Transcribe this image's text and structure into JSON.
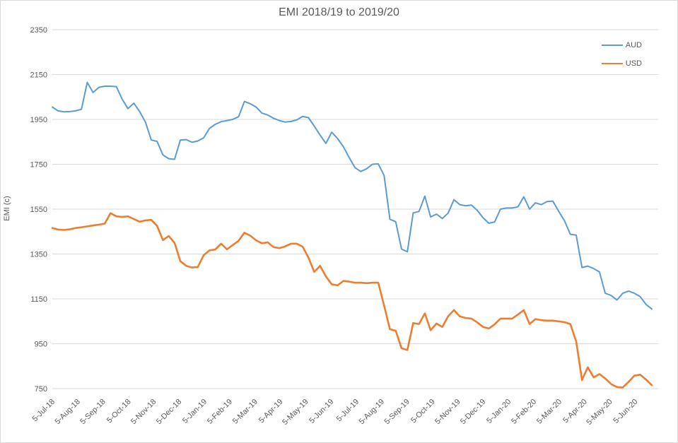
{
  "chart_data": {
    "type": "line",
    "title": "EMI 2018/19 to 2019/20",
    "xlabel": "",
    "ylabel": "EMI (c)",
    "ylim": [
      750,
      2350
    ],
    "y_ticks": [
      2350,
      2150,
      1950,
      1750,
      1550,
      1350,
      1150,
      950,
      750
    ],
    "x_tick_labels": [
      "5-Jul-18",
      "5-Aug-18",
      "5-Sep-18",
      "5-Oct-18",
      "5-Nov-18",
      "5-Dec-18",
      "5-Jan-19",
      "5-Feb-19",
      "5-Mar-19",
      "5-Apr-19",
      "5-May-19",
      "5-Jun-19",
      "5-Jul-19",
      "5-Aug-19",
      "5-Sep-19",
      "5-Oct-19",
      "5-Nov-19",
      "5-Dec-19",
      "5-Jan-20",
      "5-Feb-20",
      "5-Mar-20",
      "5-Apr-20",
      "5-May-20",
      "5-Jun-20"
    ],
    "x_resolution": "weekly",
    "grid": "horizontal",
    "legend_position": "top-right",
    "colors": {
      "grid": "#d9d9d9",
      "text": "#595959",
      "border": "#d9d9d9",
      "background": "#ffffff"
    },
    "series": [
      {
        "name": "AUD",
        "color": "#5B9BD5",
        "stroke_width": 2,
        "values": [
          2005,
          1988,
          1984,
          1985,
          1988,
          1995,
          2115,
          2070,
          2093,
          2098,
          2098,
          2096,
          2040,
          1998,
          2022,
          1985,
          1938,
          1858,
          1852,
          1792,
          1775,
          1772,
          1858,
          1860,
          1848,
          1854,
          1868,
          1910,
          1928,
          1940,
          1945,
          1950,
          1962,
          2030,
          2020,
          2005,
          1978,
          1970,
          1955,
          1945,
          1938,
          1941,
          1948,
          1963,
          1958,
          1920,
          1880,
          1843,
          1893,
          1865,
          1828,
          1780,
          1735,
          1718,
          1730,
          1750,
          1752,
          1700,
          1505,
          1494,
          1372,
          1360,
          1533,
          1540,
          1608,
          1515,
          1528,
          1508,
          1532,
          1592,
          1570,
          1565,
          1568,
          1545,
          1512,
          1487,
          1493,
          1550,
          1555,
          1555,
          1560,
          1605,
          1550,
          1578,
          1570,
          1584,
          1586,
          1540,
          1498,
          1438,
          1434,
          1290,
          1296,
          1285,
          1270,
          1175,
          1165,
          1145,
          1175,
          1185,
          1175,
          1160,
          1125,
          1105
        ]
      },
      {
        "name": "USD",
        "color": "#ED7D31",
        "stroke_width": 2.6,
        "values": [
          1466,
          1459,
          1457,
          1460,
          1466,
          1469,
          1473,
          1477,
          1481,
          1485,
          1532,
          1518,
          1515,
          1518,
          1506,
          1494,
          1500,
          1502,
          1475,
          1412,
          1430,
          1400,
          1318,
          1297,
          1290,
          1292,
          1345,
          1366,
          1370,
          1396,
          1371,
          1390,
          1409,
          1445,
          1432,
          1411,
          1398,
          1402,
          1381,
          1376,
          1384,
          1396,
          1396,
          1383,
          1334,
          1270,
          1297,
          1250,
          1215,
          1210,
          1230,
          1227,
          1222,
          1222,
          1220,
          1222,
          1222,
          1120,
          1015,
          1008,
          930,
          922,
          1042,
          1038,
          1085,
          1010,
          1040,
          1025,
          1072,
          1100,
          1072,
          1065,
          1062,
          1045,
          1025,
          1018,
          1037,
          1062,
          1062,
          1062,
          1080,
          1100,
          1038,
          1060,
          1055,
          1053,
          1053,
          1050,
          1046,
          1038,
          960,
          788,
          845,
          800,
          815,
          795,
          770,
          757,
          755,
          780,
          808,
          812,
          790,
          765
        ]
      }
    ]
  }
}
